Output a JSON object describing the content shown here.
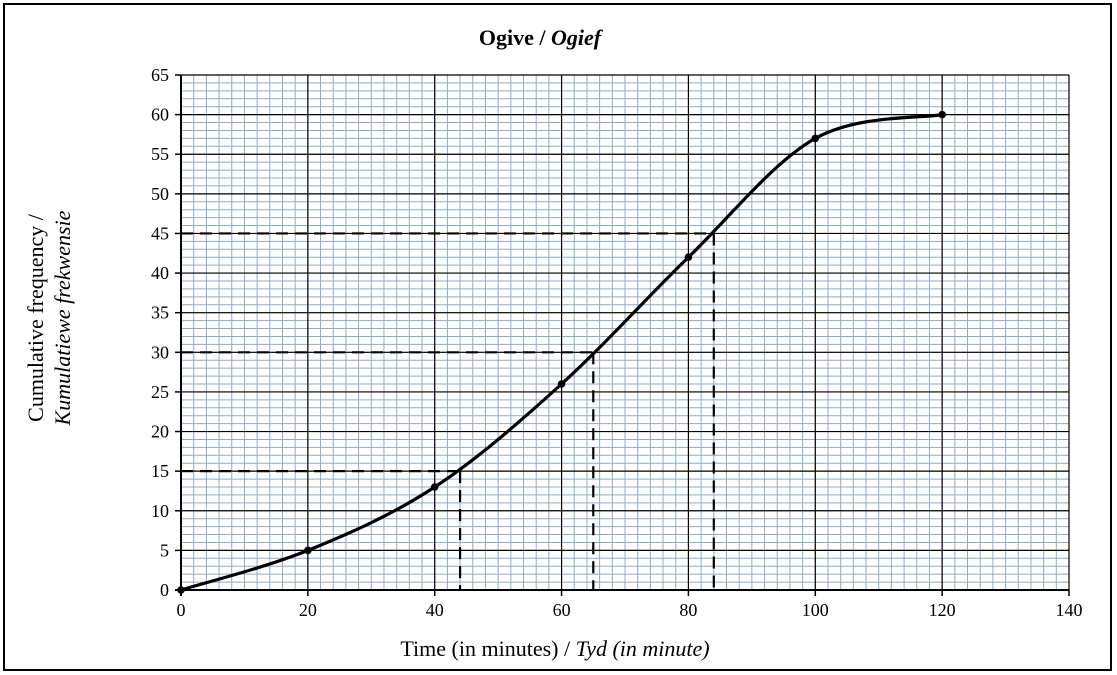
{
  "chart_data": {
    "type": "line",
    "title": "Ogive / ",
    "title_italic": "Ogief",
    "xlabel": "Time (in minutes) / ",
    "xlabel_italic": "Tyd (in minute)",
    "ylabel": "Cumulative frequency /",
    "ylabel_italic": "Kumulatiewe frekwensie",
    "xlim": [
      0,
      140
    ],
    "ylim": [
      0,
      65
    ],
    "x_major_ticks": [
      0,
      20,
      40,
      60,
      80,
      100,
      120,
      140
    ],
    "y_major_ticks": [
      0,
      5,
      10,
      15,
      20,
      25,
      30,
      35,
      40,
      45,
      50,
      55,
      60,
      65
    ],
    "minor_grid_x_step": 2,
    "minor_grid_y_step": 1,
    "grid": true,
    "series": [
      {
        "x": [
          0,
          20,
          40,
          60,
          80,
          100,
          120
        ],
        "y": [
          0,
          5,
          13,
          26,
          42,
          57,
          60
        ]
      }
    ],
    "reference_lines": [
      {
        "y": 15,
        "x": 44
      },
      {
        "y": 30,
        "x": 65
      },
      {
        "y": 45,
        "x": 84
      }
    ],
    "colors": {
      "minor_grid": "#8eaacb",
      "major_grid": "#000000",
      "curve": "#000000"
    }
  }
}
